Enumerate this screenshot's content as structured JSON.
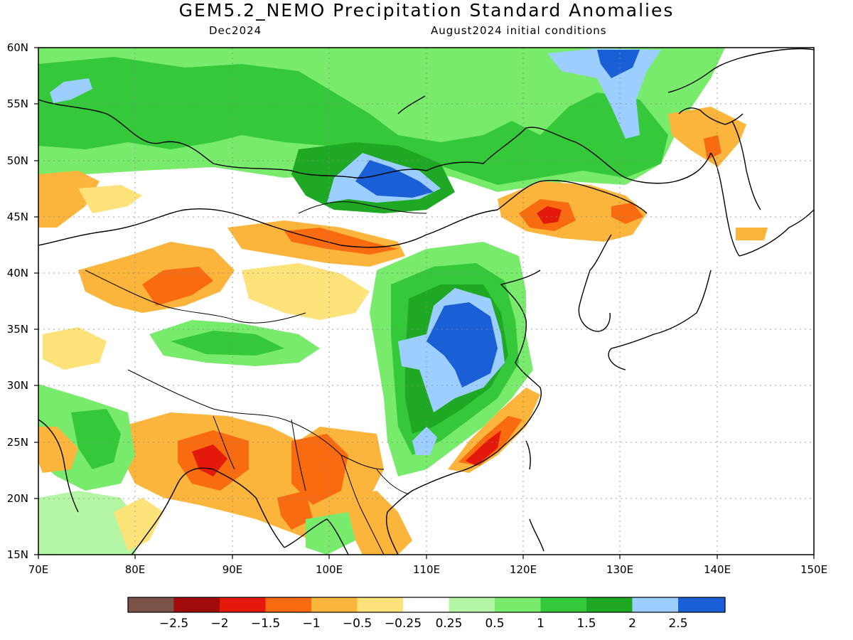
{
  "title": "GEM5.2_NEMO Precipitation Standard Anomalies",
  "subtitle_left": "Dec2024",
  "subtitle_right": "August2024 initial conditions",
  "map": {
    "lon_range": [
      70,
      150
    ],
    "lat_range": [
      15,
      60
    ],
    "lat_labels": [
      "60N",
      "55N",
      "50N",
      "45N",
      "40N",
      "35N",
      "30N",
      "25N",
      "20N",
      "15N"
    ],
    "lon_labels": [
      "70E",
      "80E",
      "90E",
      "100E",
      "110E",
      "120E",
      "130E",
      "140E",
      "150E"
    ]
  },
  "colorbar": {
    "colors": [
      "#7b5247",
      "#a10a0a",
      "#e31a0b",
      "#f86b10",
      "#fbb43c",
      "#fde27a",
      "#ffffff",
      "#b4f6a3",
      "#78ea6c",
      "#35c83a",
      "#1ea823",
      "#9ccfff",
      "#1a5fd6"
    ],
    "labels": [
      "−2.5",
      "−2",
      "−1.5",
      "−1",
      "−0.5",
      "−0.25",
      "0.25",
      "0.5",
      "1",
      "1.5",
      "2",
      "2.5"
    ]
  },
  "legend_colors": {
    "strong_dry": "#a10a0a",
    "dry": "#f86b10",
    "wet": "#35c83a",
    "very_wet": "#1a5fd6"
  }
}
